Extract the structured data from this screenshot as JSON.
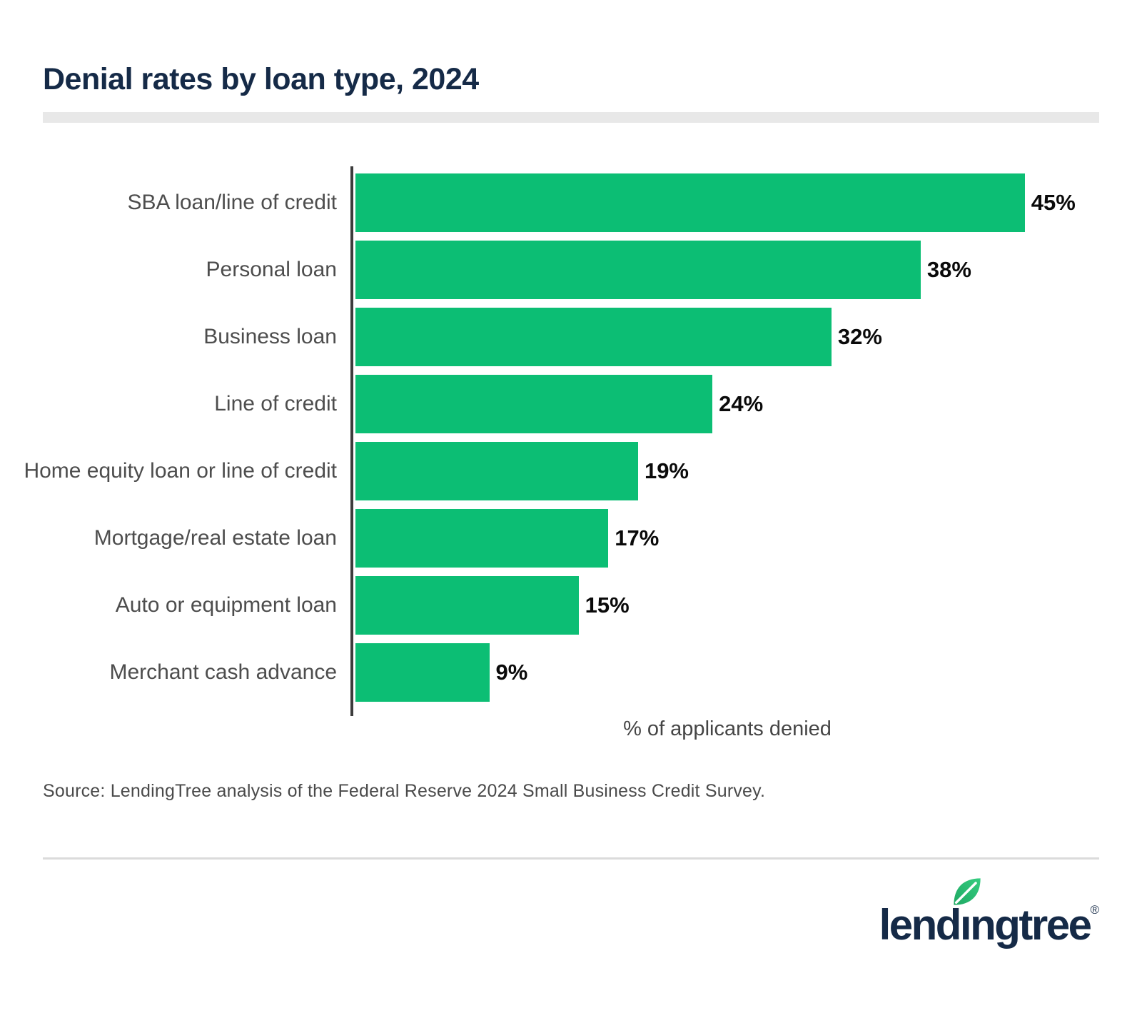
{
  "title": "Denial rates by loan type, 2024",
  "chart_data": {
    "type": "bar",
    "orientation": "horizontal",
    "title": "Denial rates by loan type, 2024",
    "categories": [
      "SBA loan/line of credit",
      "Personal loan",
      "Business loan",
      "Line of credit",
      "Home equity loan or line of credit",
      "Mortgage/real estate loan",
      "Auto or equipment loan",
      "Merchant cash advance"
    ],
    "values": [
      45,
      38,
      32,
      24,
      19,
      17,
      15,
      9
    ],
    "value_labels": [
      "45%",
      "38%",
      "32%",
      "24%",
      "19%",
      "17%",
      "15%",
      "9%"
    ],
    "xlabel": "% of applicants denied",
    "ylabel": "",
    "xlim": [
      0,
      50
    ],
    "grid": false,
    "legend": false,
    "bar_color": "#0cbe74",
    "axis_color": "#3c3c3c",
    "value_label_color": "#0a0a0a",
    "category_label_color": "#4d4d4d"
  },
  "source": "Source: LendingTree analysis of the Federal Reserve 2024 Small Business Credit Survey.",
  "logo": {
    "text_start": "lend",
    "text_i": "ı",
    "text_end": "ngtree",
    "registered": "®",
    "brand_navy": "#152a47",
    "leaf_color_dark": "#1fa863",
    "leaf_color_light": "#35cd80"
  }
}
